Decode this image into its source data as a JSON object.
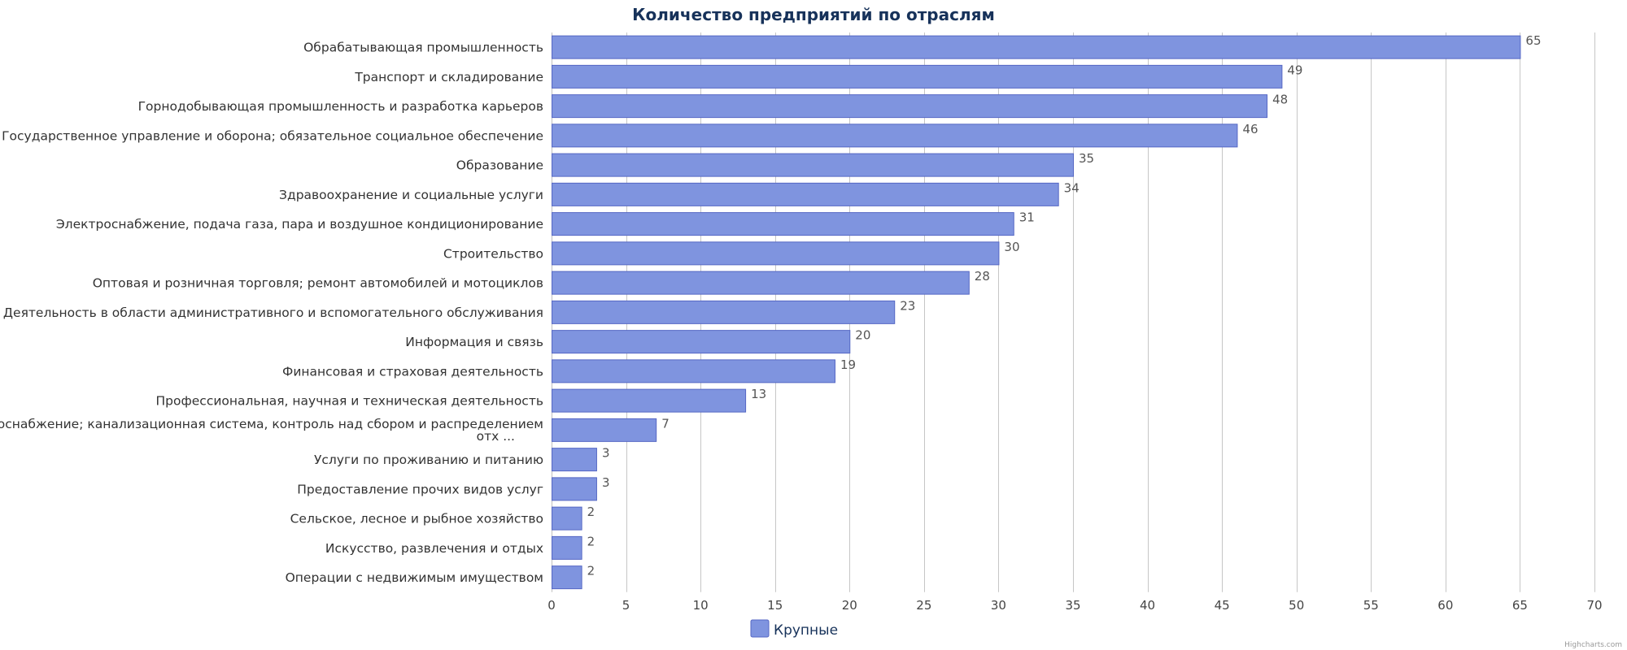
{
  "chart_data": {
    "type": "bar",
    "orientation": "horizontal",
    "title": "Количество предприятий по отраслям",
    "categories": [
      "Обрабатывающая промышленность",
      "Транспорт и складирование",
      "Горнодобывающая промышленность и разработка карьеров",
      "Государственное управление и оборона; обязательное социальное обеспечение",
      "Образование",
      "Здравоохранение и социальные услуги",
      "Электроснабжение, подача газа, пара и воздушное кондиционирование",
      "Строительство",
      "Оптовая и розничная торговля; ремонт автомобилей и мотоциклов",
      "Деятельность в области административного и вспомогательного обслуживания",
      "Информация и связь",
      "Финансовая и страховая деятельность",
      "Профессиональная, научная и техническая деятельность",
      "Водоснабжение; канализационная система, контроль над сбором и распределением отх ...",
      "Услуги по проживанию и питанию",
      "Предоставление прочих видов услуг",
      "Сельское, лесное и рыбное хозяйство",
      "Искусство, развлечения и отдых",
      "Операции с недвижимым имуществом"
    ],
    "series": [
      {
        "name": "Крупные",
        "color": "#7f94df",
        "values": [
          65,
          49,
          48,
          46,
          35,
          34,
          31,
          30,
          28,
          23,
          20,
          19,
          13,
          7,
          3,
          3,
          2,
          2,
          2
        ]
      }
    ],
    "xlim": [
      0,
      70
    ],
    "x_ticks": [
      0,
      5,
      10,
      15,
      20,
      25,
      30,
      35,
      40,
      45,
      50,
      55,
      60,
      65,
      70
    ],
    "grid": true,
    "legend_position": "bottom-center",
    "credit": "Highcharts.com"
  }
}
